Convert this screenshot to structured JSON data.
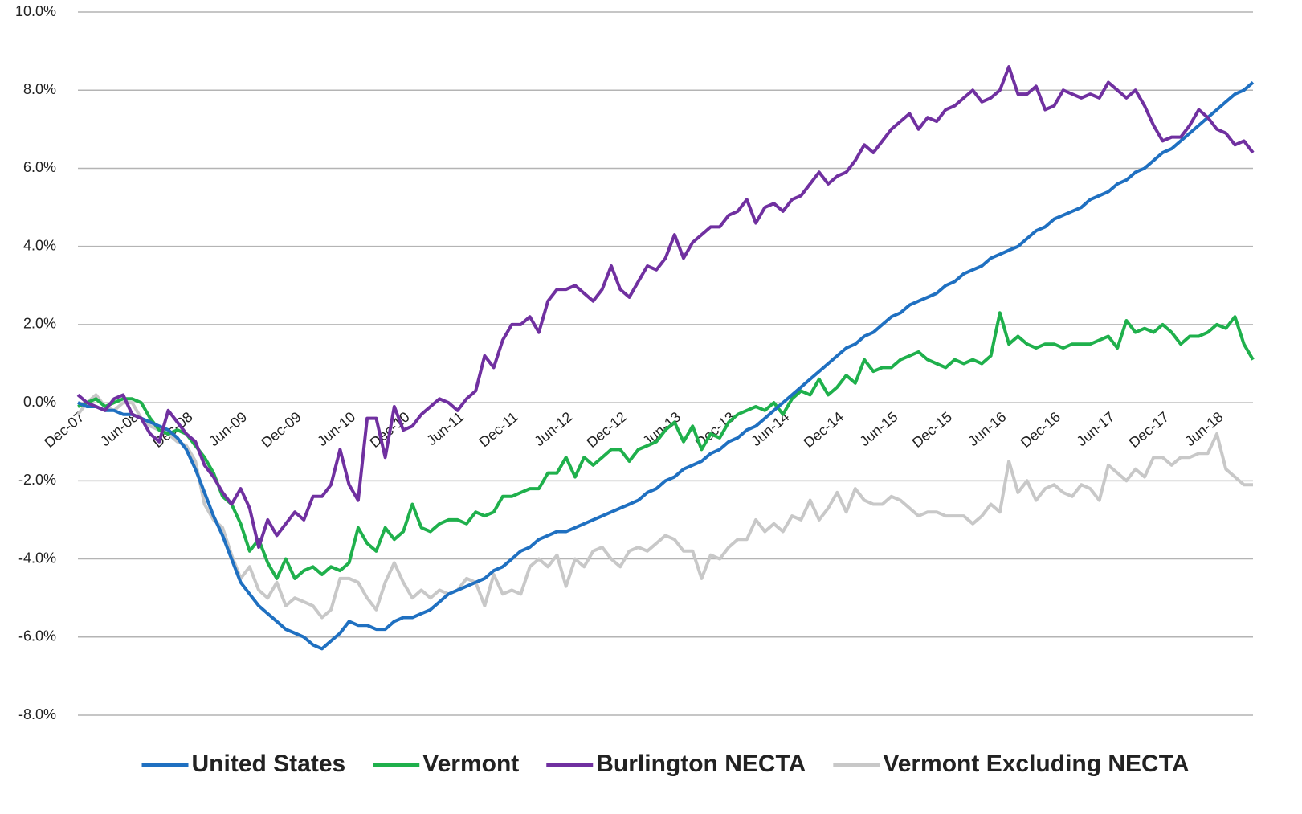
{
  "chart_data": {
    "type": "line",
    "categories": [
      "Dec-07",
      null,
      null,
      null,
      null,
      null,
      "Jun-08",
      null,
      null,
      null,
      null,
      null,
      "Dec-08",
      null,
      null,
      null,
      null,
      null,
      "Jun-09",
      null,
      null,
      null,
      null,
      null,
      "Dec-09",
      null,
      null,
      null,
      null,
      null,
      "Jun-10",
      null,
      null,
      null,
      null,
      null,
      "Dec-10",
      null,
      null,
      null,
      null,
      null,
      "Jun-11",
      null,
      null,
      null,
      null,
      null,
      "Dec-11",
      null,
      null,
      null,
      null,
      null,
      "Jun-12",
      null,
      null,
      null,
      null,
      null,
      "Dec-12",
      null,
      null,
      null,
      null,
      null,
      "Jun-13",
      null,
      null,
      null,
      null,
      null,
      "Dec-13",
      null,
      null,
      null,
      null,
      null,
      "Jun-14",
      null,
      null,
      null,
      null,
      null,
      "Dec-14",
      null,
      null,
      null,
      null,
      null,
      "Jun-15",
      null,
      null,
      null,
      null,
      null,
      "Dec-15",
      null,
      null,
      null,
      null,
      null,
      "Jun-16",
      null,
      null,
      null,
      null,
      null,
      "Dec-16",
      null,
      null,
      null,
      null,
      null,
      "Jun-17",
      null,
      null,
      null,
      null,
      null,
      "Dec-17",
      null,
      null,
      null,
      null,
      null,
      "Jun-18",
      null,
      null,
      null,
      null
    ],
    "series": [
      {
        "name": "United States",
        "color": "#1f70c1",
        "values": [
          0,
          -0.1,
          -0.1,
          -0.2,
          -0.2,
          -0.3,
          -0.3,
          -0.4,
          -0.5,
          -0.6,
          -0.7,
          -0.9,
          -1.2,
          -1.7,
          -2.3,
          -2.9,
          -3.4,
          -4.0,
          -4.6,
          -4.9,
          -5.2,
          -5.4,
          -5.6,
          -5.8,
          -5.9,
          -6.0,
          -6.2,
          -6.3,
          -6.1,
          -5.9,
          -5.6,
          -5.7,
          -5.7,
          -5.8,
          -5.8,
          -5.6,
          -5.5,
          -5.5,
          -5.4,
          -5.3,
          -5.1,
          -4.9,
          -4.8,
          -4.7,
          -4.6,
          -4.5,
          -4.3,
          -4.2,
          -4.0,
          -3.8,
          -3.7,
          -3.5,
          -3.4,
          -3.3,
          -3.3,
          -3.2,
          -3.1,
          -3.0,
          -2.9,
          -2.8,
          -2.7,
          -2.6,
          -2.5,
          -2.3,
          -2.2,
          -2.0,
          -1.9,
          -1.7,
          -1.6,
          -1.5,
          -1.3,
          -1.2,
          -1.0,
          -0.9,
          -0.7,
          -0.6,
          -0.4,
          -0.2,
          0.0,
          0.2,
          0.4,
          0.6,
          0.8,
          1.0,
          1.2,
          1.4,
          1.5,
          1.7,
          1.8,
          2.0,
          2.2,
          2.3,
          2.5,
          2.6,
          2.7,
          2.8,
          3.0,
          3.1,
          3.3,
          3.4,
          3.5,
          3.7,
          3.8,
          3.9,
          4.0,
          4.2,
          4.4,
          4.5,
          4.7,
          4.8,
          4.9,
          5.0,
          5.2,
          5.3,
          5.4,
          5.6,
          5.7,
          5.9,
          6.0,
          6.2,
          6.4,
          6.5,
          6.7,
          6.9,
          7.1,
          7.3,
          7.5,
          7.7,
          7.9,
          8.0,
          8.2
        ]
      },
      {
        "name": "Vermont",
        "color": "#1fb04c",
        "values": [
          -0.1,
          0.0,
          0.1,
          -0.1,
          0.0,
          0.1,
          0.1,
          0.0,
          -0.4,
          -0.7,
          -0.8,
          -0.7,
          -0.8,
          -1.1,
          -1.4,
          -1.8,
          -2.4,
          -2.6,
          -3.1,
          -3.8,
          -3.5,
          -4.1,
          -4.5,
          -4.0,
          -4.5,
          -4.3,
          -4.2,
          -4.4,
          -4.2,
          -4.3,
          -4.1,
          -3.2,
          -3.6,
          -3.8,
          -3.2,
          -3.5,
          -3.3,
          -2.6,
          -3.2,
          -3.3,
          -3.1,
          -3.0,
          -3.0,
          -3.1,
          -2.8,
          -2.9,
          -2.8,
          -2.4,
          -2.4,
          -2.3,
          -2.2,
          -2.2,
          -1.8,
          -1.8,
          -1.4,
          -1.9,
          -1.4,
          -1.6,
          -1.4,
          -1.2,
          -1.2,
          -1.5,
          -1.2,
          -1.1,
          -1.0,
          -0.7,
          -0.5,
          -1.0,
          -0.6,
          -1.2,
          -0.8,
          -0.9,
          -0.5,
          -0.3,
          -0.2,
          -0.1,
          -0.2,
          0.0,
          -0.3,
          0.1,
          0.3,
          0.2,
          0.6,
          0.2,
          0.4,
          0.7,
          0.5,
          1.1,
          0.8,
          0.9,
          0.9,
          1.1,
          1.2,
          1.3,
          1.1,
          1.0,
          0.9,
          1.1,
          1.0,
          1.1,
          1.0,
          1.2,
          2.3,
          1.5,
          1.7,
          1.5,
          1.4,
          1.5,
          1.5,
          1.4,
          1.5,
          1.5,
          1.5,
          1.6,
          1.7,
          1.4,
          2.1,
          1.8,
          1.9,
          1.8,
          2.0,
          1.8,
          1.5,
          1.7,
          1.7,
          1.8,
          2.0,
          1.9,
          2.2,
          1.5,
          1.1
        ]
      },
      {
        "name": "Burlington NECTA",
        "color": "#7030a0",
        "values": [
          0.2,
          0.0,
          -0.1,
          -0.2,
          0.1,
          0.2,
          -0.3,
          -0.4,
          -0.8,
          -1.0,
          -0.2,
          -0.5,
          -0.8,
          -1.0,
          -1.6,
          -1.9,
          -2.3,
          -2.6,
          -2.2,
          -2.7,
          -3.7,
          -3.0,
          -3.4,
          -3.1,
          -2.8,
          -3.0,
          -2.4,
          -2.4,
          -2.1,
          -1.2,
          -2.1,
          -2.5,
          -0.4,
          -0.4,
          -1.4,
          -0.1,
          -0.7,
          -0.6,
          -0.3,
          -0.1,
          0.1,
          0.0,
          -0.2,
          0.1,
          0.3,
          1.2,
          0.9,
          1.6,
          2.0,
          2.0,
          2.2,
          1.8,
          2.6,
          2.9,
          2.9,
          3.0,
          2.8,
          2.6,
          2.9,
          3.5,
          2.9,
          2.7,
          3.1,
          3.5,
          3.4,
          3.7,
          4.3,
          3.7,
          4.1,
          4.3,
          4.5,
          4.5,
          4.8,
          4.9,
          5.2,
          4.6,
          5.0,
          5.1,
          4.9,
          5.2,
          5.3,
          5.6,
          5.9,
          5.6,
          5.8,
          5.9,
          6.2,
          6.6,
          6.4,
          6.7,
          7.0,
          7.2,
          7.4,
          7.0,
          7.3,
          7.2,
          7.5,
          7.6,
          7.8,
          8.0,
          7.7,
          7.8,
          8.0,
          8.6,
          7.9,
          7.9,
          8.1,
          7.5,
          7.6,
          8.0,
          7.9,
          7.8,
          7.9,
          7.8,
          8.2,
          8.0,
          7.8,
          8.0,
          7.6,
          7.1,
          6.7,
          6.8,
          6.8,
          7.1,
          7.5,
          7.3,
          7.0,
          6.9,
          6.6,
          6.7,
          6.4
        ]
      },
      {
        "name": "Vermont Excluding NECTA",
        "color": "#c8c8c8",
        "values": [
          -0.3,
          0.0,
          0.2,
          -0.1,
          -0.2,
          0.0,
          0.0,
          -0.4,
          -0.6,
          -0.7,
          -0.8,
          -1.0,
          -1.1,
          -1.5,
          -2.6,
          -3.0,
          -3.2,
          -3.9,
          -4.5,
          -4.2,
          -4.8,
          -5.0,
          -4.6,
          -5.2,
          -5.0,
          -5.1,
          -5.2,
          -5.5,
          -5.3,
          -4.5,
          -4.5,
          -4.6,
          -5.0,
          -5.3,
          -4.6,
          -4.1,
          -4.6,
          -5.0,
          -4.8,
          -5.0,
          -4.8,
          -4.9,
          -4.8,
          -4.5,
          -4.6,
          -5.2,
          -4.4,
          -4.9,
          -4.8,
          -4.9,
          -4.2,
          -4.0,
          -4.2,
          -3.9,
          -4.7,
          -4.0,
          -4.2,
          -3.8,
          -3.7,
          -4.0,
          -4.2,
          -3.8,
          -3.7,
          -3.8,
          -3.6,
          -3.4,
          -3.5,
          -3.8,
          -3.8,
          -4.5,
          -3.9,
          -4.0,
          -3.7,
          -3.5,
          -3.5,
          -3.0,
          -3.3,
          -3.1,
          -3.3,
          -2.9,
          -3.0,
          -2.5,
          -3.0,
          -2.7,
          -2.3,
          -2.8,
          -2.2,
          -2.5,
          -2.6,
          -2.6,
          -2.4,
          -2.5,
          -2.7,
          -2.9,
          -2.8,
          -2.8,
          -2.9,
          -2.9,
          -2.9,
          -3.1,
          -2.9,
          -2.6,
          -2.8,
          -1.5,
          -2.3,
          -2.0,
          -2.5,
          -2.2,
          -2.1,
          -2.3,
          -2.4,
          -2.1,
          -2.2,
          -2.5,
          -1.6,
          -1.8,
          -2.0,
          -1.7,
          -1.9,
          -1.4,
          -1.4,
          -1.6,
          -1.4,
          -1.4,
          -1.3,
          -1.3,
          -0.8,
          -1.7,
          -1.9,
          -2.1,
          -2.1
        ]
      }
    ],
    "ylim": [
      -8,
      10
    ],
    "yticks": [
      {
        "value": -8,
        "label": "-8.0%"
      },
      {
        "value": -6,
        "label": "-6.0%"
      },
      {
        "value": -4,
        "label": "-4.0%"
      },
      {
        "value": -2,
        "label": "-2.0%"
      },
      {
        "value": 0,
        "label": "0.0%"
      },
      {
        "value": 2,
        "label": "2.0%"
      },
      {
        "value": 4,
        "label": "4.0%"
      },
      {
        "value": 6,
        "label": "6.0%"
      },
      {
        "value": 8,
        "label": "8.0%"
      },
      {
        "value": 10,
        "label": "10.0%"
      }
    ],
    "grid": true,
    "legend": "bottom"
  }
}
